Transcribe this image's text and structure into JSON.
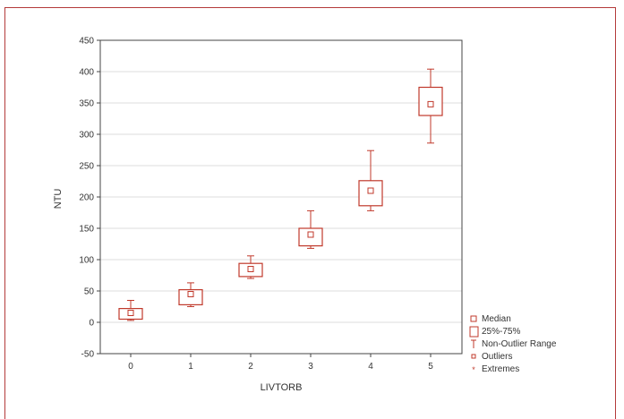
{
  "chart_data": {
    "type": "boxplot",
    "xlabel": "LIVTORB",
    "ylabel": "NTU",
    "ylim": [
      -50,
      450
    ],
    "yticks": [
      -50,
      0,
      50,
      100,
      150,
      200,
      250,
      300,
      350,
      400,
      450
    ],
    "categories": [
      "0",
      "1",
      "2",
      "3",
      "4",
      "5"
    ],
    "boxes": [
      {
        "category": "0",
        "median": 15,
        "q1": 5,
        "q3": 22,
        "whisker_low": 3,
        "whisker_high": 35
      },
      {
        "category": "1",
        "median": 45,
        "q1": 28,
        "q3": 52,
        "whisker_low": 25,
        "whisker_high": 63
      },
      {
        "category": "2",
        "median": 85,
        "q1": 73,
        "q3": 94,
        "whisker_low": 70,
        "whisker_high": 106
      },
      {
        "category": "3",
        "median": 140,
        "q1": 122,
        "q3": 150,
        "whisker_low": 118,
        "whisker_high": 178
      },
      {
        "category": "4",
        "median": 210,
        "q1": 186,
        "q3": 226,
        "whisker_low": 178,
        "whisker_high": 274
      },
      {
        "category": "5",
        "median": 348,
        "q1": 330,
        "q3": 375,
        "whisker_low": 286,
        "whisker_high": 404
      }
    ],
    "grid": true,
    "legend_position": "right-bottom",
    "legend": [
      {
        "key": "median",
        "label": "Median"
      },
      {
        "key": "box",
        "label": "25%-75%"
      },
      {
        "key": "range",
        "label": "Non-Outlier Range"
      },
      {
        "key": "outliers",
        "label": "Outliers"
      },
      {
        "key": "extremes",
        "label": "Extremes"
      }
    ],
    "colors": {
      "box": "#c0392b",
      "frame": "#b33a3a",
      "axis": "#444444",
      "grid": "#dddddd"
    }
  }
}
